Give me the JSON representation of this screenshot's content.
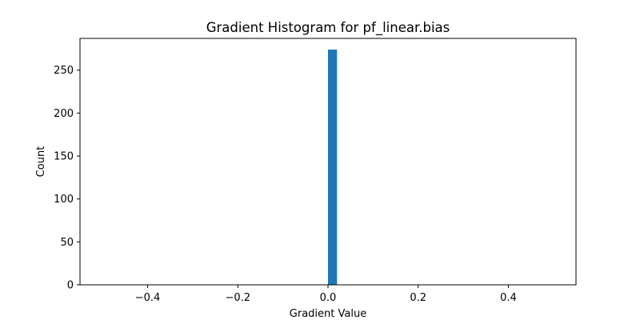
{
  "chart_data": {
    "type": "bar",
    "title": "Gradient Histogram for pf_linear.bias",
    "xlabel": "Gradient Value",
    "ylabel": "Count",
    "xlim": [
      -0.55,
      0.55
    ],
    "ylim": [
      0,
      287
    ],
    "x_ticks": [
      -0.4,
      -0.2,
      0.0,
      0.2,
      0.4
    ],
    "x_tick_labels": [
      "−0.4",
      "−0.2",
      "0.0",
      "0.2",
      "0.4"
    ],
    "y_ticks": [
      0,
      50,
      100,
      150,
      200,
      250
    ],
    "y_tick_labels": [
      "0",
      "50",
      "100",
      "150",
      "200",
      "250"
    ],
    "bins": [
      {
        "x0": 0.0,
        "x1": 0.02,
        "count": 274
      }
    ],
    "bar_color": "#1f77b4",
    "grid": false,
    "legend": "none"
  }
}
